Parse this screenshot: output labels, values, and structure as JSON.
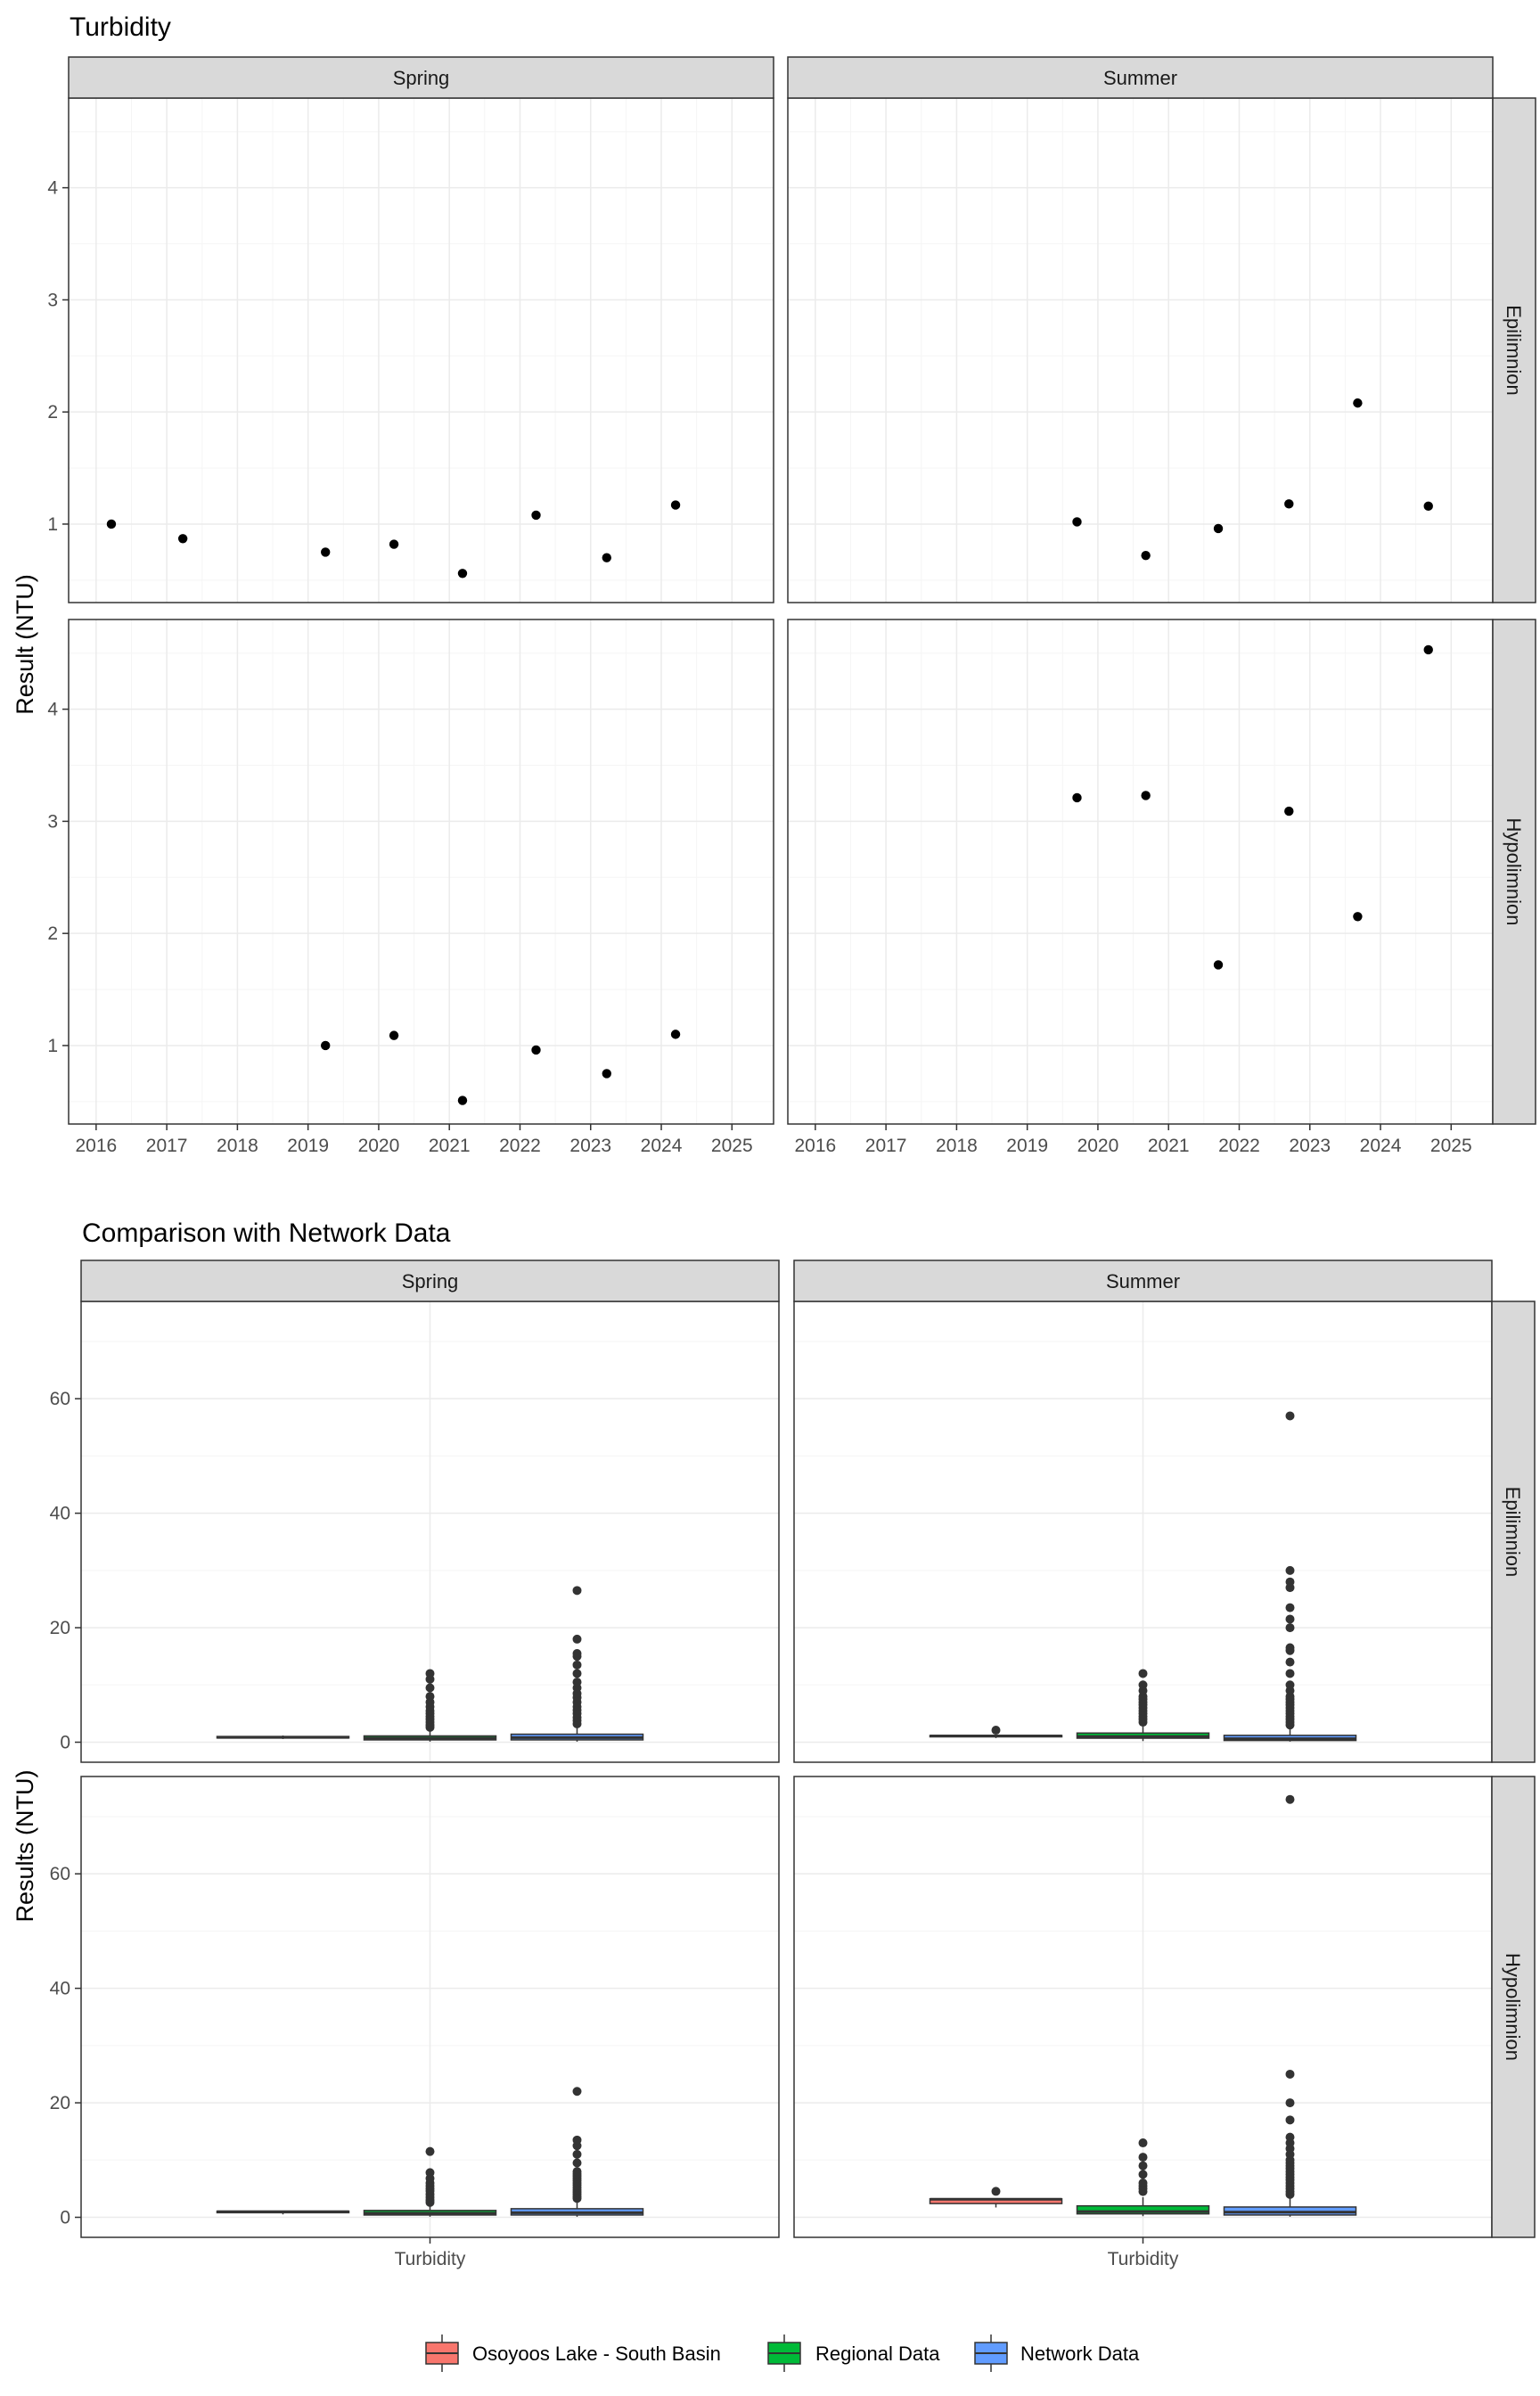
{
  "chart_data": [
    {
      "type": "scatter",
      "title": "Turbidity",
      "xlabel": "",
      "ylabel": "Result (NTU)",
      "facet_cols": [
        "Spring",
        "Summer"
      ],
      "facet_rows": [
        "Epilimnion",
        "Hypolimnion"
      ],
      "xlim": [
        2015.8,
        2025.4
      ],
      "ylim": [
        0.3,
        4.8
      ],
      "x_ticks": [
        "2016",
        "2017",
        "2018",
        "2019",
        "2020",
        "2021",
        "2022",
        "2023",
        "2024",
        "2025"
      ],
      "y_ticks": [
        "1",
        "2",
        "3",
        "4"
      ],
      "grid": true,
      "panels": [
        {
          "col": "Spring",
          "row": "Epilimnion",
          "x": [
            "2016-03-20",
            "2017-03-25",
            "2019-04-01",
            "2020-03-20",
            "2021-03-10",
            "2022-03-25",
            "2023-03-25",
            "2024-03-15"
          ],
          "y": [
            1.0,
            0.87,
            0.75,
            0.82,
            0.56,
            1.08,
            0.7,
            1.17
          ]
        },
        {
          "col": "Summer",
          "row": "Epilimnion",
          "x": [
            "2019-09-15",
            "2020-09-05",
            "2021-09-15",
            "2022-09-15",
            "2023-09-05",
            "2024-09-05"
          ],
          "y": [
            1.02,
            0.72,
            0.96,
            1.18,
            2.08,
            1.16
          ]
        },
        {
          "col": "Spring",
          "row": "Hypolimnion",
          "x": [
            "2019-04-01",
            "2020-03-20",
            "2021-03-10",
            "2022-03-25",
            "2023-03-25",
            "2024-03-15"
          ],
          "y": [
            1.0,
            1.09,
            0.51,
            0.96,
            0.75,
            1.1
          ]
        },
        {
          "col": "Summer",
          "row": "Hypolimnion",
          "x": [
            "2019-09-15",
            "2020-09-05",
            "2021-09-15",
            "2022-09-15",
            "2023-09-05",
            "2024-09-05"
          ],
          "y": [
            3.21,
            3.23,
            1.72,
            3.09,
            2.15,
            4.53
          ]
        }
      ]
    },
    {
      "type": "box",
      "title": "Comparison with Network Data",
      "xlabel": "",
      "ylabel": "Results (NTU)",
      "facet_cols": [
        "Spring",
        "Summer"
      ],
      "facet_rows": [
        "Epilimnion",
        "Hypolimnion"
      ],
      "categories": [
        "Turbidity"
      ],
      "ylim": [
        -3.5,
        77
      ],
      "y_ticks": [
        "0",
        "20",
        "40",
        "60"
      ],
      "grid": true,
      "legend_position": "bottom",
      "series": [
        {
          "name": "Osoyoos Lake - South Basin",
          "color": "#F8766D"
        },
        {
          "name": "Regional Data",
          "color": "#00BA38"
        },
        {
          "name": "Network Data",
          "color": "#619CFF"
        }
      ],
      "panels": [
        {
          "col": "Spring",
          "row": "Epilimnion",
          "boxes": [
            {
              "series": "Osoyoos Lake - South Basin",
              "min": 0.56,
              "q1": 0.74,
              "median": 0.85,
              "q3": 1.0,
              "max": 1.17,
              "outliers": []
            },
            {
              "series": "Regional Data",
              "min": 0.1,
              "q1": 0.4,
              "median": 0.7,
              "q3": 1.1,
              "max": 2.0,
              "outliers": [
                2.6,
                3.0,
                3.5,
                4.0,
                4.5,
                5.0,
                5.5,
                6.2,
                7.0,
                8.0,
                9.5,
                11.0,
                12.0
              ]
            },
            {
              "series": "Network Data",
              "min": 0.1,
              "q1": 0.4,
              "median": 0.8,
              "q3": 1.4,
              "max": 2.8,
              "outliers": [
                3.2,
                3.8,
                4.3,
                5.0,
                5.6,
                6.2,
                7.0,
                7.8,
                8.5,
                9.5,
                10.5,
                12.0,
                13.5,
                15.0,
                15.5,
                18.0,
                26.5
              ]
            }
          ]
        },
        {
          "col": "Summer",
          "row": "Epilimnion",
          "boxes": [
            {
              "series": "Osoyoos Lake - South Basin",
              "min": 0.72,
              "q1": 0.98,
              "median": 1.09,
              "q3": 1.17,
              "max": 1.18,
              "outliers": [
                2.1
              ]
            },
            {
              "series": "Regional Data",
              "min": 0.2,
              "q1": 0.7,
              "median": 1.0,
              "q3": 1.6,
              "max": 3.0,
              "outliers": [
                3.5,
                4.0,
                4.5,
                5.0,
                5.5,
                6.0,
                6.5,
                7.0,
                7.5,
                8.0,
                9.0,
                10.0,
                12.0
              ]
            },
            {
              "series": "Network Data",
              "min": 0.1,
              "q1": 0.3,
              "median": 0.6,
              "q3": 1.2,
              "max": 2.5,
              "outliers": [
                3.0,
                3.5,
                4.0,
                4.5,
                5.0,
                5.5,
                6.0,
                6.5,
                7.0,
                7.5,
                8.0,
                9.0,
                10.0,
                12.0,
                14.0,
                16.0,
                16.5,
                20.0,
                21.5,
                23.5,
                27.0,
                28.0,
                30.0,
                57.0
              ]
            }
          ]
        },
        {
          "col": "Spring",
          "row": "Hypolimnion",
          "boxes": [
            {
              "series": "Osoyoos Lake - South Basin",
              "min": 0.51,
              "q1": 0.8,
              "median": 0.98,
              "q3": 1.07,
              "max": 1.1,
              "outliers": []
            },
            {
              "series": "Regional Data",
              "min": 0.1,
              "q1": 0.4,
              "median": 0.7,
              "q3": 1.2,
              "max": 2.2,
              "outliers": [
                2.6,
                3.0,
                3.5,
                4.0,
                4.6,
                5.0,
                5.5,
                6.0,
                6.8,
                7.8,
                11.5
              ]
            },
            {
              "series": "Network Data",
              "min": 0.1,
              "q1": 0.4,
              "median": 0.8,
              "q3": 1.5,
              "max": 3.0,
              "outliers": [
                3.3,
                3.6,
                4.0,
                4.4,
                4.8,
                5.2,
                5.6,
                6.0,
                6.4,
                6.8,
                7.2,
                7.6,
                8.0,
                9.5,
                11.0,
                12.5,
                13.5,
                22.0
              ]
            }
          ]
        },
        {
          "col": "Summer",
          "row": "Hypolimnion",
          "boxes": [
            {
              "series": "Osoyoos Lake - South Basin",
              "min": 1.72,
              "q1": 2.4,
              "median": 3.15,
              "q3": 3.22,
              "max": 3.23,
              "outliers": [
                4.53
              ]
            },
            {
              "series": "Regional Data",
              "min": 0.2,
              "q1": 0.6,
              "median": 1.0,
              "q3": 2.0,
              "max": 3.5,
              "outliers": [
                4.5,
                5.0,
                5.5,
                6.0,
                7.5,
                9.0,
                10.5,
                13.0
              ]
            },
            {
              "series": "Network Data",
              "min": 0.1,
              "q1": 0.4,
              "median": 0.9,
              "q3": 1.8,
              "max": 3.8,
              "outliers": [
                4.0,
                4.5,
                5.0,
                5.5,
                6.0,
                6.5,
                7.0,
                7.5,
                8.0,
                8.5,
                9.0,
                9.5,
                10.0,
                11.0,
                12.0,
                13.0,
                14.0,
                17.0,
                20.0,
                25.0,
                73.0
              ]
            }
          ]
        }
      ]
    }
  ]
}
